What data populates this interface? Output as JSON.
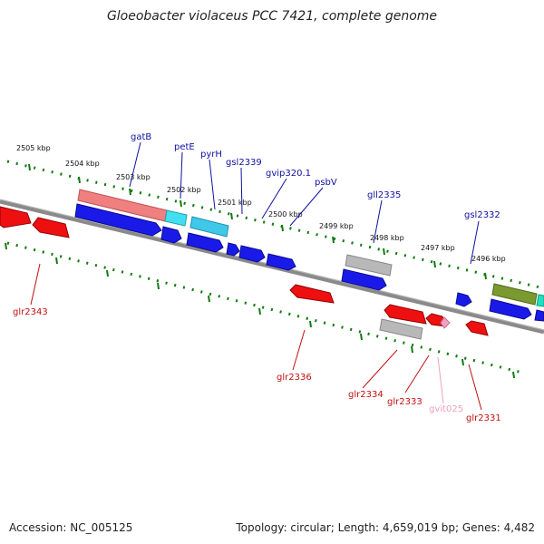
{
  "title": "Gloeobacter violaceus PCC 7421, complete genome",
  "footer": {
    "accession": "Accession: NC_005125",
    "summary": "Topology: circular; Length: 4,659,019 bp; Genes: 4,482"
  },
  "colors": {
    "backbone": "#8a8a8a",
    "tick": "#127a12",
    "label_top": "#1010a0",
    "label_bottom": "#c01010",
    "label_pink": "#f0a0c0"
  },
  "ticks": [
    "2505 kbp",
    "2504 kbp",
    "2503 kbp",
    "2502 kbp",
    "2501 kbp",
    "2500 kbp",
    "2499 kbp",
    "2498 kbp",
    "2497 kbp",
    "2496 kbp"
  ],
  "genes_top": [
    {
      "name": "gatB"
    },
    {
      "name": "petE"
    },
    {
      "name": "pyrH"
    },
    {
      "name": "gsl2339"
    },
    {
      "name": "gvip320.1"
    },
    {
      "name": "psbV"
    },
    {
      "name": "gll2335"
    },
    {
      "name": "gsl2332"
    }
  ],
  "genes_bottom": [
    {
      "name": "glr2343"
    },
    {
      "name": "glr2336"
    },
    {
      "name": "glr2334"
    },
    {
      "name": "glr2333"
    },
    {
      "name": "gvit025"
    },
    {
      "name": "glr2331"
    }
  ]
}
